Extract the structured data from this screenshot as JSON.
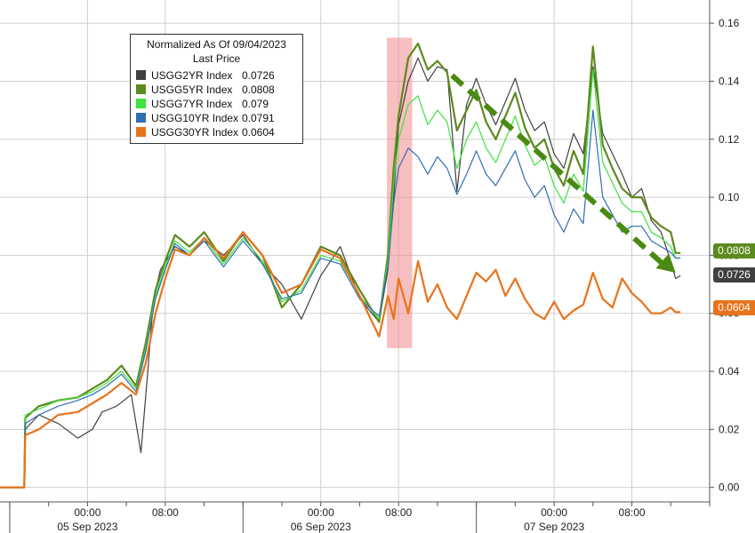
{
  "legend": {
    "title": "Normalized As Of 09/04/2023",
    "subtitle": "Last Price"
  },
  "chart_data": {
    "type": "line",
    "ylim": [
      -0.005,
      0.168
    ],
    "y_ticks": [
      "0.00",
      "0.02",
      "0.04",
      "0.06",
      "0.08",
      "0.10",
      "0.12",
      "0.14",
      "0.16"
    ],
    "x_ticks": [
      {
        "time": "00:00",
        "date": "05 Sep 2023"
      },
      {
        "time": "08:00",
        "date": ""
      },
      {
        "time": "00:00",
        "date": "06 Sep 2023"
      },
      {
        "time": "08:00",
        "date": ""
      },
      {
        "time": "00:00",
        "date": "07 Sep 2023"
      },
      {
        "time": "08:00",
        "date": ""
      }
    ],
    "x_ticks_hours": [
      0,
      8,
      24,
      32,
      48,
      56
    ],
    "x_range_hours": [
      -9,
      64
    ],
    "grid": true,
    "legend_position": "top-left",
    "highlight_hours": [
      30.8,
      33.4
    ],
    "trend_arrow": {
      "start": [
        37.5,
        0.142
      ],
      "end": [
        60.5,
        0.074
      ]
    },
    "series": [
      {
        "name": "USGG2YR Index",
        "last": "0.0726",
        "color": "#404040",
        "points": [
          [
            -9,
            0
          ],
          [
            -6.5,
            0
          ],
          [
            -6.4,
            0.02
          ],
          [
            -5,
            0.025
          ],
          [
            -3,
            0.022
          ],
          [
            -1,
            0.017
          ],
          [
            0.5,
            0.02
          ],
          [
            1.5,
            0.026
          ],
          [
            3,
            0.028
          ],
          [
            4.5,
            0.032
          ],
          [
            5.5,
            0.012
          ],
          [
            6.2,
            0.04
          ],
          [
            6.8,
            0.065
          ],
          [
            7.5,
            0.075
          ],
          [
            9,
            0.083
          ],
          [
            10.5,
            0.08
          ],
          [
            12,
            0.085
          ],
          [
            14,
            0.08
          ],
          [
            16,
            0.087
          ],
          [
            18,
            0.077
          ],
          [
            20,
            0.07
          ],
          [
            22,
            0.058
          ],
          [
            24,
            0.073
          ],
          [
            26,
            0.083
          ],
          [
            28,
            0.065
          ],
          [
            30,
            0.057
          ],
          [
            30.9,
            0.075
          ],
          [
            31.5,
            0.1
          ],
          [
            32,
            0.125
          ],
          [
            33,
            0.14
          ],
          [
            34,
            0.148
          ],
          [
            35,
            0.14
          ],
          [
            36,
            0.145
          ],
          [
            37,
            0.144
          ],
          [
            38,
            0.102
          ],
          [
            39,
            0.132
          ],
          [
            40,
            0.141
          ],
          [
            41,
            0.132
          ],
          [
            42,
            0.125
          ],
          [
            43,
            0.133
          ],
          [
            44,
            0.141
          ],
          [
            45,
            0.13
          ],
          [
            46,
            0.123
          ],
          [
            47,
            0.126
          ],
          [
            48,
            0.115
          ],
          [
            49,
            0.11
          ],
          [
            50,
            0.122
          ],
          [
            51,
            0.115
          ],
          [
            52,
            0.145
          ],
          [
            53,
            0.122
          ],
          [
            54,
            0.115
          ],
          [
            55,
            0.108
          ],
          [
            56,
            0.1
          ],
          [
            57,
            0.103
          ],
          [
            58,
            0.092
          ],
          [
            59,
            0.088
          ],
          [
            60,
            0.078
          ],
          [
            60.5,
            0.072
          ],
          [
            61,
            0.073
          ]
        ]
      },
      {
        "name": "USGG5YR Index",
        "last": "0.0808",
        "color": "#5c8a1e",
        "points": [
          [
            -9,
            0
          ],
          [
            -6.5,
            0
          ],
          [
            -6.4,
            0.024
          ],
          [
            -5,
            0.028
          ],
          [
            -3,
            0.03
          ],
          [
            -1,
            0.031
          ],
          [
            0.5,
            0.034
          ],
          [
            2,
            0.037
          ],
          [
            3.5,
            0.042
          ],
          [
            5,
            0.035
          ],
          [
            6,
            0.05
          ],
          [
            7,
            0.068
          ],
          [
            8,
            0.078
          ],
          [
            9,
            0.087
          ],
          [
            10.5,
            0.083
          ],
          [
            12,
            0.088
          ],
          [
            14,
            0.078
          ],
          [
            16,
            0.088
          ],
          [
            18,
            0.08
          ],
          [
            20,
            0.062
          ],
          [
            22,
            0.07
          ],
          [
            24,
            0.083
          ],
          [
            26,
            0.08
          ],
          [
            28,
            0.068
          ],
          [
            30,
            0.057
          ],
          [
            30.9,
            0.08
          ],
          [
            31.5,
            0.11
          ],
          [
            32,
            0.128
          ],
          [
            33,
            0.148
          ],
          [
            34,
            0.153
          ],
          [
            35,
            0.144
          ],
          [
            36,
            0.147
          ],
          [
            37,
            0.143
          ],
          [
            38,
            0.123
          ],
          [
            39,
            0.13
          ],
          [
            40,
            0.137
          ],
          [
            41,
            0.126
          ],
          [
            42,
            0.12
          ],
          [
            43,
            0.128
          ],
          [
            44,
            0.136
          ],
          [
            45,
            0.124
          ],
          [
            46,
            0.117
          ],
          [
            47,
            0.12
          ],
          [
            48,
            0.11
          ],
          [
            49,
            0.104
          ],
          [
            50,
            0.116
          ],
          [
            51,
            0.108
          ],
          [
            52,
            0.152
          ],
          [
            53,
            0.118
          ],
          [
            54,
            0.11
          ],
          [
            55,
            0.103
          ],
          [
            56,
            0.1
          ],
          [
            57,
            0.1
          ],
          [
            58,
            0.093
          ],
          [
            59,
            0.09
          ],
          [
            60,
            0.088
          ],
          [
            60.5,
            0.0808
          ],
          [
            61,
            0.0808
          ]
        ]
      },
      {
        "name": "USGG7YR Index",
        "last": "0.079",
        "color": "#3fe23f",
        "points": [
          [
            -9,
            0
          ],
          [
            -6.5,
            0
          ],
          [
            -6.4,
            0.025
          ],
          [
            -5,
            0.027
          ],
          [
            -3,
            0.03
          ],
          [
            -1,
            0.031
          ],
          [
            0.5,
            0.033
          ],
          [
            2,
            0.036
          ],
          [
            3.5,
            0.04
          ],
          [
            5,
            0.034
          ],
          [
            6,
            0.048
          ],
          [
            7,
            0.066
          ],
          [
            8,
            0.076
          ],
          [
            9,
            0.085
          ],
          [
            10.5,
            0.081
          ],
          [
            12,
            0.086
          ],
          [
            14,
            0.077
          ],
          [
            16,
            0.086
          ],
          [
            18,
            0.078
          ],
          [
            20,
            0.064
          ],
          [
            22,
            0.068
          ],
          [
            24,
            0.08
          ],
          [
            26,
            0.078
          ],
          [
            28,
            0.066
          ],
          [
            30,
            0.058
          ],
          [
            30.9,
            0.078
          ],
          [
            31.5,
            0.105
          ],
          [
            32,
            0.12
          ],
          [
            33,
            0.132
          ],
          [
            34,
            0.135
          ],
          [
            35,
            0.125
          ],
          [
            36,
            0.13
          ],
          [
            37,
            0.126
          ],
          [
            38,
            0.11
          ],
          [
            39,
            0.12
          ],
          [
            40,
            0.126
          ],
          [
            41,
            0.117
          ],
          [
            42,
            0.112
          ],
          [
            43,
            0.12
          ],
          [
            44,
            0.128
          ],
          [
            45,
            0.118
          ],
          [
            46,
            0.111
          ],
          [
            47,
            0.114
          ],
          [
            48,
            0.104
          ],
          [
            49,
            0.098
          ],
          [
            50,
            0.108
          ],
          [
            51,
            0.102
          ],
          [
            52,
            0.144
          ],
          [
            53,
            0.112
          ],
          [
            54,
            0.105
          ],
          [
            55,
            0.098
          ],
          [
            56,
            0.095
          ],
          [
            57,
            0.095
          ],
          [
            58,
            0.088
          ],
          [
            59,
            0.086
          ],
          [
            60,
            0.083
          ],
          [
            60.5,
            0.079
          ],
          [
            61,
            0.079
          ]
        ]
      },
      {
        "name": "USGG10YR Index",
        "last": "0.0791",
        "color": "#2f6db5",
        "points": [
          [
            -9,
            0
          ],
          [
            -6.5,
            0
          ],
          [
            -6.4,
            0.022
          ],
          [
            -5,
            0.025
          ],
          [
            -3,
            0.028
          ],
          [
            -1,
            0.03
          ],
          [
            0.5,
            0.032
          ],
          [
            2,
            0.035
          ],
          [
            3.5,
            0.039
          ],
          [
            5,
            0.033
          ],
          [
            6,
            0.047
          ],
          [
            7,
            0.065
          ],
          [
            8,
            0.075
          ],
          [
            9,
            0.084
          ],
          [
            10.5,
            0.08
          ],
          [
            12,
            0.085
          ],
          [
            14,
            0.076
          ],
          [
            16,
            0.085
          ],
          [
            18,
            0.077
          ],
          [
            20,
            0.065
          ],
          [
            22,
            0.067
          ],
          [
            24,
            0.079
          ],
          [
            26,
            0.077
          ],
          [
            28,
            0.065
          ],
          [
            30,
            0.059
          ],
          [
            30.9,
            0.076
          ],
          [
            31.5,
            0.098
          ],
          [
            32,
            0.11
          ],
          [
            33,
            0.117
          ],
          [
            34,
            0.114
          ],
          [
            35,
            0.108
          ],
          [
            36,
            0.114
          ],
          [
            37,
            0.11
          ],
          [
            38,
            0.101
          ],
          [
            39,
            0.108
          ],
          [
            40,
            0.116
          ],
          [
            41,
            0.108
          ],
          [
            42,
            0.104
          ],
          [
            43,
            0.11
          ],
          [
            44,
            0.116
          ],
          [
            45,
            0.106
          ],
          [
            46,
            0.1
          ],
          [
            47,
            0.104
          ],
          [
            48,
            0.094
          ],
          [
            49,
            0.088
          ],
          [
            50,
            0.096
          ],
          [
            51,
            0.091
          ],
          [
            52,
            0.13
          ],
          [
            53,
            0.1
          ],
          [
            54,
            0.094
          ],
          [
            55,
            0.088
          ],
          [
            56,
            0.09
          ],
          [
            57,
            0.09
          ],
          [
            58,
            0.085
          ],
          [
            59,
            0.083
          ],
          [
            60,
            0.081
          ],
          [
            60.5,
            0.0791
          ],
          [
            61,
            0.0791
          ]
        ]
      },
      {
        "name": "USGG30YR Index",
        "last": "0.0604",
        "color": "#e8731c",
        "points": [
          [
            -9,
            0
          ],
          [
            -6.5,
            0
          ],
          [
            -6.4,
            0.018
          ],
          [
            -5,
            0.02
          ],
          [
            -3,
            0.025
          ],
          [
            -1,
            0.026
          ],
          [
            0.5,
            0.029
          ],
          [
            2,
            0.032
          ],
          [
            3.5,
            0.036
          ],
          [
            5,
            0.032
          ],
          [
            6,
            0.043
          ],
          [
            7,
            0.06
          ],
          [
            8,
            0.072
          ],
          [
            9,
            0.082
          ],
          [
            10.5,
            0.08
          ],
          [
            12,
            0.086
          ],
          [
            14,
            0.079
          ],
          [
            16,
            0.088
          ],
          [
            18,
            0.08
          ],
          [
            20,
            0.067
          ],
          [
            22,
            0.07
          ],
          [
            24,
            0.082
          ],
          [
            26,
            0.079
          ],
          [
            28,
            0.066
          ],
          [
            30,
            0.052
          ],
          [
            30.9,
            0.066
          ],
          [
            31.5,
            0.058
          ],
          [
            32,
            0.072
          ],
          [
            33,
            0.06
          ],
          [
            34,
            0.078
          ],
          [
            35,
            0.064
          ],
          [
            36,
            0.07
          ],
          [
            37,
            0.062
          ],
          [
            38,
            0.058
          ],
          [
            39,
            0.066
          ],
          [
            40,
            0.074
          ],
          [
            41,
            0.071
          ],
          [
            42,
            0.075
          ],
          [
            43,
            0.066
          ],
          [
            44,
            0.072
          ],
          [
            45,
            0.065
          ],
          [
            46,
            0.06
          ],
          [
            47,
            0.058
          ],
          [
            48,
            0.064
          ],
          [
            49,
            0.058
          ],
          [
            50,
            0.061
          ],
          [
            51,
            0.063
          ],
          [
            52,
            0.074
          ],
          [
            53,
            0.065
          ],
          [
            54,
            0.062
          ],
          [
            55,
            0.072
          ],
          [
            56,
            0.067
          ],
          [
            57,
            0.064
          ],
          [
            58,
            0.06
          ],
          [
            59,
            0.06
          ],
          [
            60,
            0.062
          ],
          [
            60.5,
            0.0604
          ],
          [
            61,
            0.0604
          ]
        ]
      }
    ]
  }
}
